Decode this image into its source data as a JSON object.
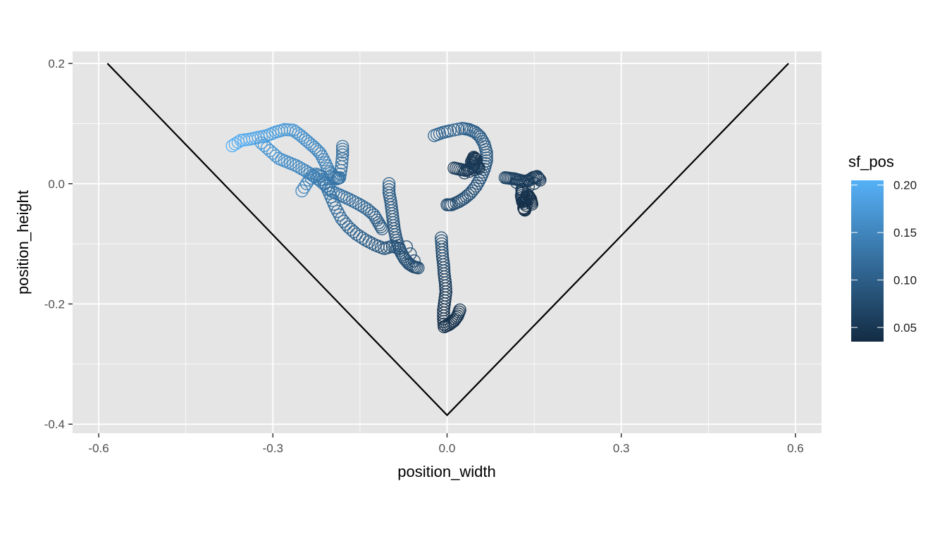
{
  "chart_data": {
    "type": "scatter",
    "xlabel": "position_width",
    "ylabel": "position_height",
    "xlim": [
      -0.645,
      0.645
    ],
    "ylim": [
      -0.415,
      0.22
    ],
    "x_ticks": [
      -0.6,
      -0.3,
      0.0,
      0.3,
      0.6
    ],
    "x_tick_labels": [
      "-0.6",
      "-0.3",
      "0.0",
      "0.3",
      "0.6"
    ],
    "y_ticks": [
      0.2,
      0.0,
      -0.2,
      -0.4
    ],
    "y_tick_labels": [
      "0.2",
      "0.0",
      "-0.2",
      "-0.4"
    ],
    "grid": true,
    "background_color": "#e5e5e5",
    "marker": "open-circle",
    "boundary_line": {
      "x": [
        -0.585,
        0.0,
        0.588
      ],
      "y": [
        0.2,
        -0.385,
        0.2
      ],
      "color": "#000000"
    },
    "color_scale": {
      "name": "sf_pos",
      "low_color": "#132b43",
      "high_color": "#56b1f7",
      "min": 0.035,
      "max": 0.205,
      "breaks": [
        0.2,
        0.15,
        0.1,
        0.05
      ],
      "break_labels": [
        "0.20",
        "0.15",
        "0.10",
        "0.05"
      ],
      "legend_position": "right"
    },
    "tracks": [
      {
        "points": [
          [
            -0.37,
            0.063
          ],
          [
            -0.355,
            0.072
          ],
          [
            -0.34,
            0.074
          ],
          [
            -0.325,
            0.077
          ],
          [
            -0.31,
            0.08
          ],
          [
            -0.295,
            0.086
          ],
          [
            -0.28,
            0.09
          ],
          [
            -0.265,
            0.089
          ],
          [
            -0.252,
            0.08
          ],
          [
            -0.24,
            0.07
          ],
          [
            -0.228,
            0.06
          ],
          [
            -0.218,
            0.05
          ],
          [
            -0.21,
            0.035
          ],
          [
            -0.203,
            0.02
          ],
          [
            -0.196,
            0.012
          ],
          [
            -0.19,
            0.008
          ],
          [
            -0.185,
            0.01
          ],
          [
            -0.182,
            0.028
          ],
          [
            -0.18,
            0.048
          ],
          [
            -0.18,
            0.062
          ]
        ],
        "sf_pos": [
          0.205,
          0.2,
          0.195,
          0.19,
          0.185,
          0.18,
          0.175,
          0.17,
          0.165,
          0.16,
          0.155,
          0.15,
          0.145,
          0.14,
          0.135,
          0.13,
          0.128,
          0.126,
          0.124,
          0.122
        ]
      },
      {
        "points": [
          [
            -0.32,
            0.068
          ],
          [
            -0.305,
            0.055
          ],
          [
            -0.29,
            0.042
          ],
          [
            -0.275,
            0.036
          ],
          [
            -0.26,
            0.03
          ],
          [
            -0.245,
            0.022
          ],
          [
            -0.232,
            0.014
          ],
          [
            -0.22,
            0.006
          ],
          [
            -0.208,
            -0.004
          ],
          [
            -0.196,
            -0.014
          ],
          [
            -0.182,
            -0.02
          ],
          [
            -0.168,
            -0.026
          ],
          [
            -0.152,
            -0.034
          ],
          [
            -0.138,
            -0.042
          ],
          [
            -0.126,
            -0.052
          ],
          [
            -0.118,
            -0.065
          ],
          [
            -0.112,
            -0.075
          ]
        ],
        "sf_pos": [
          0.175,
          0.17,
          0.165,
          0.16,
          0.155,
          0.15,
          0.145,
          0.14,
          0.135,
          0.13,
          0.125,
          0.12,
          0.115,
          0.11,
          0.105,
          0.1,
          0.095
        ]
      },
      {
        "points": [
          [
            -0.25,
            -0.012
          ],
          [
            -0.238,
            0.006
          ],
          [
            -0.226,
            0.016
          ],
          [
            -0.216,
            0.012
          ],
          [
            -0.208,
            -0.004
          ],
          [
            -0.2,
            -0.022
          ],
          [
            -0.192,
            -0.04
          ],
          [
            -0.182,
            -0.058
          ],
          [
            -0.17,
            -0.072
          ],
          [
            -0.156,
            -0.084
          ],
          [
            -0.14,
            -0.094
          ],
          [
            -0.124,
            -0.102
          ],
          [
            -0.108,
            -0.108
          ],
          [
            -0.094,
            -0.104
          ],
          [
            -0.082,
            -0.108
          ]
        ],
        "sf_pos": [
          0.15,
          0.145,
          0.14,
          0.135,
          0.13,
          0.125,
          0.12,
          0.115,
          0.11,
          0.105,
          0.1,
          0.095,
          0.09,
          0.085,
          0.08
        ]
      },
      {
        "points": [
          [
            -0.1,
            0.0
          ],
          [
            -0.1,
            -0.015
          ],
          [
            -0.097,
            -0.03
          ],
          [
            -0.095,
            -0.045
          ],
          [
            -0.093,
            -0.06
          ],
          [
            -0.091,
            -0.075
          ],
          [
            -0.088,
            -0.09
          ],
          [
            -0.084,
            -0.103
          ],
          [
            -0.079,
            -0.115
          ],
          [
            -0.073,
            -0.125
          ],
          [
            -0.066,
            -0.133
          ],
          [
            -0.058,
            -0.138
          ],
          [
            -0.05,
            -0.14
          ],
          [
            -0.07,
            -0.105
          ]
        ],
        "sf_pos": [
          0.1,
          0.098,
          0.096,
          0.094,
          0.092,
          0.09,
          0.088,
          0.086,
          0.084,
          0.082,
          0.08,
          0.078,
          0.076,
          0.08
        ]
      },
      {
        "points": [
          [
            -0.01,
            -0.09
          ],
          [
            -0.009,
            -0.105
          ],
          [
            -0.008,
            -0.12
          ],
          [
            -0.006,
            -0.135
          ],
          [
            -0.005,
            -0.15
          ],
          [
            -0.003,
            -0.165
          ],
          [
            -0.002,
            -0.18
          ],
          [
            -0.004,
            -0.195
          ],
          [
            -0.006,
            -0.21
          ],
          [
            -0.006,
            -0.225
          ],
          [
            -0.005,
            -0.238
          ],
          [
            0.004,
            -0.234
          ],
          [
            0.012,
            -0.228
          ],
          [
            0.018,
            -0.22
          ],
          [
            0.022,
            -0.21
          ]
        ],
        "sf_pos": [
          0.085,
          0.08,
          0.075,
          0.07,
          0.065,
          0.06,
          0.055,
          0.05,
          0.047,
          0.044,
          0.04,
          0.042,
          0.044,
          0.046,
          0.048
        ]
      },
      {
        "points": [
          [
            -0.022,
            0.08
          ],
          [
            -0.008,
            0.085
          ],
          [
            0.005,
            0.088
          ],
          [
            0.026,
            0.092
          ],
          [
            0.038,
            0.09
          ],
          [
            0.048,
            0.086
          ],
          [
            0.057,
            0.078
          ],
          [
            0.064,
            0.066
          ],
          [
            0.068,
            0.052
          ],
          [
            0.068,
            0.038
          ],
          [
            0.064,
            0.024
          ],
          [
            0.058,
            0.01
          ],
          [
            0.05,
            -0.004
          ],
          [
            0.04,
            -0.016
          ],
          [
            0.03,
            -0.024
          ],
          [
            0.02,
            -0.03
          ],
          [
            0.008,
            -0.035
          ],
          [
            0.0,
            -0.035
          ]
        ],
        "sf_pos": [
          0.11,
          0.108,
          0.106,
          0.104,
          0.102,
          0.1,
          0.098,
          0.096,
          0.094,
          0.092,
          0.09,
          0.088,
          0.086,
          0.084,
          0.082,
          0.08,
          0.078,
          0.076
        ]
      },
      {
        "points": [
          [
            0.012,
            0.026
          ],
          [
            0.022,
            0.024
          ],
          [
            0.032,
            0.022
          ],
          [
            0.04,
            0.025
          ],
          [
            0.046,
            0.032
          ],
          [
            0.05,
            0.04
          ],
          [
            0.046,
            0.044
          ],
          [
            0.042,
            0.036
          ],
          [
            0.05,
            0.03
          ],
          [
            0.055,
            0.026
          ],
          [
            0.03,
            0.018
          ]
        ],
        "sf_pos": [
          0.06,
          0.058,
          0.056,
          0.054,
          0.052,
          0.05,
          0.05,
          0.05,
          0.052,
          0.054,
          0.056
        ]
      },
      {
        "points": [
          [
            0.1,
            0.01
          ],
          [
            0.108,
            0.009
          ],
          [
            0.116,
            0.008
          ],
          [
            0.124,
            0.006
          ],
          [
            0.132,
            0.004
          ],
          [
            0.14,
            0.005
          ],
          [
            0.148,
            0.01
          ],
          [
            0.155,
            0.012
          ],
          [
            0.16,
            0.006
          ],
          [
            0.13,
            -0.01
          ],
          [
            0.128,
            -0.02
          ],
          [
            0.13,
            -0.03
          ],
          [
            0.135,
            -0.028
          ],
          [
            0.138,
            -0.018
          ],
          [
            0.132,
            -0.04
          ],
          [
            0.134,
            -0.044
          ],
          [
            0.14,
            -0.02
          ],
          [
            0.144,
            -0.026
          ],
          [
            0.146,
            -0.034
          ],
          [
            0.12,
            0.002
          ]
        ],
        "sf_pos": [
          0.07,
          0.068,
          0.066,
          0.064,
          0.062,
          0.06,
          0.058,
          0.056,
          0.054,
          0.05,
          0.048,
          0.046,
          0.045,
          0.046,
          0.042,
          0.04,
          0.044,
          0.042,
          0.04,
          0.06
        ]
      }
    ]
  }
}
